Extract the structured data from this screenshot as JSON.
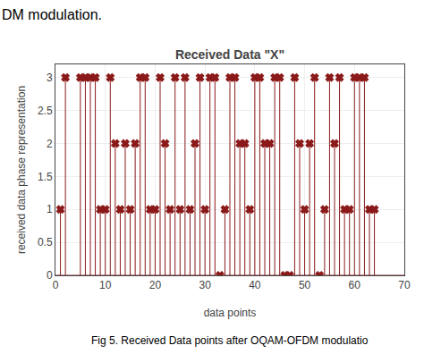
{
  "chart_data": {
    "type": "stem",
    "title": "Received Data \"X\"",
    "xlabel": "data points",
    "ylabel": "received data phase representation",
    "annotations": [
      "DM modulation.",
      "Fig 5. Received Data points after OQAM-OFDM modulatio"
    ],
    "x": [
      1,
      2,
      5,
      6,
      7,
      8,
      9,
      10,
      11,
      12,
      13,
      14,
      15,
      16,
      17,
      18,
      19,
      20,
      21,
      22,
      23,
      24,
      25,
      26,
      27,
      28,
      29,
      30,
      31,
      32,
      33,
      34,
      35,
      36,
      37,
      38,
      39,
      40,
      41,
      42,
      43,
      44,
      45,
      46,
      47,
      48,
      49,
      50,
      51,
      52,
      53,
      54,
      55,
      56,
      57,
      58,
      59,
      60,
      61,
      62,
      63,
      64
    ],
    "values": [
      1,
      3,
      3,
      3,
      3,
      3,
      1,
      1,
      3,
      2,
      1,
      2,
      1,
      2,
      3,
      3,
      1,
      1,
      3,
      2,
      1,
      3,
      1,
      3,
      1,
      2,
      3,
      1,
      3,
      3,
      0,
      1,
      3,
      3,
      2,
      2,
      1,
      3,
      3,
      2,
      2,
      3,
      3,
      0,
      0,
      3,
      2,
      1,
      2,
      3,
      0,
      1,
      3,
      2,
      3,
      1,
      1,
      3,
      3,
      3,
      1,
      1
    ],
    "color": "#8B1A1A",
    "marker": "x",
    "xlim": [
      0,
      70
    ],
    "xticks": [
      0,
      10,
      20,
      30,
      40,
      50,
      60,
      70
    ],
    "ylim": [
      0,
      3.2
    ],
    "yticks": [
      0,
      0.5,
      1,
      1.5,
      2,
      2.5,
      3
    ],
    "grid": true
  }
}
